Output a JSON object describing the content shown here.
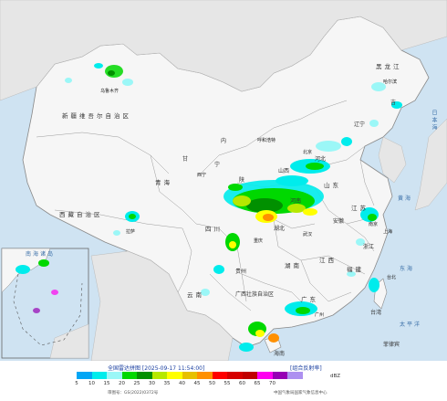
{
  "map": {
    "labels": {
      "xinjiang": "新疆维吾尔自治区",
      "urumqi": "乌鲁木齐",
      "tibet": "西藏自治区",
      "lhasa": "拉萨",
      "qinghai": "青海",
      "xining": "西宁",
      "gansu": "甘",
      "inner_mongolia": "内",
      "hohhot": "呼和浩特",
      "heilongjiang": "黑龙江",
      "harbin": "哈尔滨",
      "jilin": "吉",
      "sichuan": "四川",
      "chongqing": "重庆",
      "guizhou": "贵州",
      "yunnan": "云南",
      "guangxi": "广西壮族自治区",
      "hunan": "湖南",
      "jiangxi": "江西",
      "fujian": "福建",
      "shandong": "山东",
      "jiangsu": "江苏",
      "nanjing": "南京",
      "shanghai": "上海",
      "hangzhou": "浙江",
      "taiwan": "台湾",
      "taibei": "台北",
      "guangdong": "广东",
      "guangzhou": "广州",
      "hainan": "海南",
      "ningxia": "宁",
      "shaanxi": "陕",
      "henan": "河南",
      "hubei": "湖北",
      "wuhan": "武汉",
      "anhui": "安徽",
      "hebei": "河北",
      "beijing": "北京",
      "shanxi": "山西",
      "liaoning": "辽宁",
      "japan_sea": "日本海",
      "yellow_sea": "黄海",
      "east_sea": "东海",
      "pacific": "太平洋",
      "south_sea": "南海诸岛",
      "philippines": "菲律宾"
    }
  },
  "legend": {
    "title": "全国雷达拼图 [2025-09-17 11:54:00]",
    "product": "[组合反射率]",
    "unit": "dBZ",
    "ticks": [
      "5",
      "10",
      "15",
      "20",
      "25",
      "30",
      "35",
      "40",
      "45",
      "50",
      "55",
      "60",
      "65",
      "70"
    ],
    "colors": [
      "#02a6f5",
      "#00ecec",
      "#9bf7f7",
      "#00d800",
      "#019000",
      "#b6e800",
      "#ffff00",
      "#e7c000",
      "#ff9000",
      "#ff0000",
      "#d60000",
      "#c00000",
      "#ff00f0",
      "#9600b4",
      "#ad90f0"
    ],
    "approval": "审图号：GS(2022)0372号",
    "agency": "中国气象局国家气象信息中心"
  }
}
